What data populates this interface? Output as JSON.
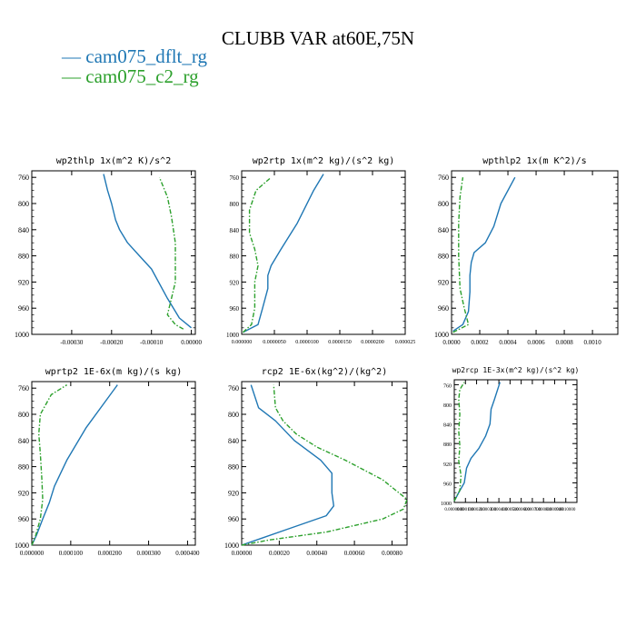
{
  "page_title": "CLUBB VAR at60E,75N",
  "legend": [
    {
      "label": "cam075_dflt_rg",
      "color": "#1f77b4"
    },
    {
      "label": "cam075_c2_rg",
      "color": "#2ca02c"
    }
  ],
  "chart_data": [
    {
      "type": "line",
      "title": "wp2thlp  1x(m^2 K)/s^2",
      "xlim": [
        -0.0004,
        1e-05
      ],
      "ylim": [
        1000,
        750
      ],
      "yticks": [
        760,
        800,
        840,
        880,
        920,
        960,
        1000
      ],
      "xticks": [
        -0.0003,
        -0.0002,
        -0.0001,
        0.0
      ],
      "xtick_labels": [
        "-0.00030",
        "-0.00020",
        "-0.00010",
        "0.00000"
      ],
      "series": [
        {
          "name": "cam075_dflt_rg",
          "color": "#1f77b4",
          "style": "solid",
          "x": [
            0.0,
            -3e-05,
            -6e-05,
            -0.0001,
            -0.00013,
            -0.00016,
            -0.00018,
            -0.00019,
            -0.0002,
            -0.00021,
            -0.00022
          ],
          "y": [
            990,
            975,
            945,
            900,
            880,
            860,
            840,
            825,
            800,
            780,
            755
          ]
        },
        {
          "name": "cam075_c2_rg",
          "color": "#2ca02c",
          "style": "dashdot",
          "x": [
            -2e-05,
            -4e-05,
            -6e-05,
            -5e-05,
            -4e-05,
            -4e-05,
            -4e-05,
            -5e-05,
            -6e-05,
            -8e-05
          ],
          "y": [
            992,
            985,
            970,
            945,
            920,
            890,
            860,
            820,
            790,
            760
          ]
        }
      ]
    },
    {
      "type": "line",
      "title": "wp2rtp  1x(m^2 kg)/(s^2 kg)",
      "xlim": [
        0.0,
        2.5e-05
      ],
      "ylim": [
        1000,
        750
      ],
      "yticks": [
        760,
        800,
        840,
        880,
        920,
        960,
        1000
      ],
      "xticks": [
        0.0,
        5e-06,
        1e-05,
        1.5e-05,
        2e-05,
        2.5e-05
      ],
      "xtick_labels": [
        "0.000000",
        "0.0000050",
        "0.0000100",
        "0.0000150",
        "0.0000200",
        "0.000025"
      ],
      "series": [
        {
          "name": "cam075_dflt_rg",
          "color": "#1f77b4",
          "style": "solid",
          "x": [
            2e-07,
            2.5e-06,
            3.2e-06,
            4e-06,
            4e-06,
            4.5e-06,
            6e-06,
            8.5e-06,
            1.1e-05,
            1.25e-05
          ],
          "y": [
            997,
            985,
            960,
            930,
            910,
            895,
            870,
            830,
            780,
            755
          ]
        },
        {
          "name": "cam075_c2_rg",
          "color": "#2ca02c",
          "style": "dashdot",
          "x": [
            2e-07,
            1.5e-06,
            2e-06,
            2e-06,
            2.5e-06,
            2e-06,
            1.2e-06,
            1.2e-06,
            2.2e-06,
            4.5e-06
          ],
          "y": [
            997,
            985,
            960,
            920,
            895,
            870,
            845,
            810,
            780,
            760
          ]
        }
      ]
    },
    {
      "type": "line",
      "title": "wpthlp2  1x(m K^2)/s",
      "xlim": [
        0.0,
        0.00118
      ],
      "ylim": [
        1000,
        750
      ],
      "yticks": [
        760,
        800,
        840,
        880,
        920,
        960,
        1000
      ],
      "xticks": [
        0.0,
        0.0002,
        0.0004,
        0.0006,
        0.0008,
        0.001
      ],
      "xtick_labels": [
        "0.0000",
        "0.0002",
        "0.0004",
        "0.0006",
        "0.0008",
        "0.0010"
      ],
      "series": [
        {
          "name": "cam075_dflt_rg",
          "color": "#1f77b4",
          "style": "solid",
          "x": [
            1e-05,
            8e-05,
            0.00012,
            0.00013,
            0.00013,
            0.00014,
            0.00016,
            0.00024,
            0.0003,
            0.00035,
            0.00045
          ],
          "y": [
            995,
            985,
            965,
            935,
            910,
            890,
            875,
            860,
            835,
            800,
            760
          ]
        },
        {
          "name": "cam075_c2_rg",
          "color": "#2ca02c",
          "style": "dashdot",
          "x": [
            1e-05,
            0.00012,
            9e-05,
            6e-05,
            5e-05,
            5e-05,
            6e-05,
            8e-05
          ],
          "y": [
            997,
            985,
            960,
            930,
            880,
            830,
            790,
            760
          ]
        }
      ]
    },
    {
      "type": "line",
      "title": "wprtp2  1E-6x(m kg)/(s kg)",
      "xlim": [
        0.0,
        0.00042
      ],
      "ylim": [
        1000,
        750
      ],
      "yticks": [
        760,
        800,
        840,
        880,
        920,
        960,
        1000
      ],
      "xticks": [
        0.0,
        0.0001,
        0.0002,
        0.0003,
        0.0004
      ],
      "xtick_labels": [
        "0.000000",
        "0.000100",
        "0.000200",
        "0.000300",
        "0.000400"
      ],
      "series": [
        {
          "name": "cam075_dflt_rg",
          "color": "#1f77b4",
          "style": "solid",
          "x": [
            0.0,
            1.2e-05,
            2.8e-05,
            4.5e-05,
            5.8e-05,
            9e-05,
            0.00014,
            0.00022
          ],
          "y": [
            1000,
            985,
            960,
            935,
            910,
            870,
            820,
            755
          ]
        },
        {
          "name": "cam075_c2_rg",
          "color": "#2ca02c",
          "style": "dashdot",
          "x": [
            0.0,
            1e-05,
            2.2e-05,
            2.8e-05,
            2.6e-05,
            2.2e-05,
            1.8e-05,
            2.2e-05,
            5e-05,
            9e-05
          ],
          "y": [
            1000,
            985,
            960,
            930,
            900,
            860,
            830,
            800,
            770,
            755
          ]
        }
      ]
    },
    {
      "type": "line",
      "title": "rcp2  1E-6x(kg^2)/(kg^2)",
      "xlim": [
        0.0,
        0.00088
      ],
      "ylim": [
        1000,
        750
      ],
      "yticks": [
        760,
        800,
        840,
        880,
        920,
        960,
        1000
      ],
      "xticks": [
        0.0,
        0.0002,
        0.0004,
        0.0006,
        0.0008
      ],
      "xtick_labels": [
        "0.00000",
        "0.00020",
        "0.00040",
        "0.00060",
        "0.00080"
      ],
      "series": [
        {
          "name": "cam075_dflt_rg",
          "color": "#1f77b4",
          "style": "solid",
          "x": [
            0.0,
            0.0001,
            0.00025,
            0.00045,
            0.00049,
            0.00048,
            0.00048,
            0.00042,
            0.00028,
            0.00018,
            9e-05,
            5e-05
          ],
          "y": [
            1000,
            990,
            975,
            955,
            940,
            920,
            890,
            870,
            840,
            810,
            790,
            755
          ]
        },
        {
          "name": "cam075_c2_rg",
          "color": "#2ca02c",
          "style": "dashdot",
          "x": [
            0.0,
            0.00015,
            0.00045,
            0.00075,
            0.00086,
            0.00088,
            0.00075,
            0.00055,
            0.0004,
            0.00029,
            0.00022,
            0.00018,
            0.00017
          ],
          "y": [
            1000,
            992,
            980,
            960,
            945,
            930,
            900,
            870,
            850,
            830,
            810,
            790,
            755
          ]
        }
      ]
    },
    {
      "type": "line",
      "title": "wp2rcp  1E-3x(m^2 kg)/(s^2 kg)",
      "xlim": [
        0.0,
        0.0011
      ],
      "ylim": [
        1000,
        750
      ],
      "yticks": [
        760,
        800,
        840,
        880,
        920,
        960,
        1000
      ],
      "xticks": [
        0.0,
        0.0001,
        0.0002,
        0.0003,
        0.0004,
        0.0005,
        0.0006,
        0.0007,
        0.0008,
        0.0009,
        0.001
      ],
      "xtick_labels": [
        "0.0000000",
        "0.000100",
        "0.000200",
        "0.000300",
        "0.000400",
        "0.000500",
        "0.000600",
        "0.000700",
        "0.000800",
        "0.000900",
        "0.0010000"
      ],
      "series": [
        {
          "name": "cam075_dflt_rg",
          "color": "#1f77b4",
          "style": "solid",
          "x": [
            0.0,
            4e-05,
            9e-05,
            0.00011,
            0.00015,
            0.00022,
            0.00028,
            0.00032,
            0.00033,
            0.00036,
            0.00041
          ],
          "y": [
            997,
            980,
            960,
            930,
            910,
            890,
            865,
            840,
            810,
            790,
            755
          ]
        },
        {
          "name": "cam075_c2_rg",
          "color": "#2ca02c",
          "style": "dashdot",
          "x": [
            0.0,
            5e-05,
            6e-05,
            4e-05,
            5e-05,
            4e-05,
            5e-05,
            4e-05,
            5e-05,
            9e-05
          ],
          "y": [
            997,
            975,
            945,
            915,
            885,
            855,
            820,
            790,
            770,
            755
          ]
        }
      ]
    }
  ]
}
